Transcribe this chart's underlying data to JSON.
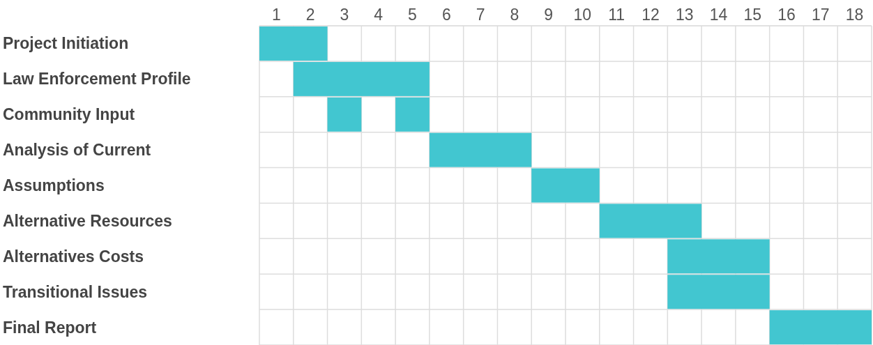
{
  "chart_data": {
    "type": "bar",
    "orientation": "horizontal",
    "grid": true,
    "categories": [
      "Project Initiation",
      "Law Enforcement Profile",
      "Community Input",
      "Analysis of Current",
      "Assumptions",
      "Alternative Resources",
      "Alternatives Costs",
      "Transitional Issues",
      "Final Report"
    ],
    "xlim": [
      0,
      18
    ],
    "xticks": [
      {
        "value": 0.5,
        "label": "1"
      },
      {
        "value": 1.5,
        "label": "2"
      },
      {
        "value": 2.5,
        "label": "3"
      },
      {
        "value": 3.5,
        "label": "4"
      },
      {
        "value": 4.5,
        "label": "5"
      },
      {
        "value": 5.5,
        "label": "6"
      },
      {
        "value": 6.5,
        "label": "7"
      },
      {
        "value": 7.5,
        "label": "8"
      },
      {
        "value": 8.5,
        "label": "9"
      },
      {
        "value": 9.5,
        "label": "10"
      },
      {
        "value": 10.5,
        "label": "11"
      },
      {
        "value": 11.5,
        "label": "12"
      },
      {
        "value": 12.5,
        "label": "13"
      },
      {
        "value": 13.5,
        "label": "14"
      },
      {
        "value": 14.5,
        "label": "15"
      },
      {
        "value": 15.5,
        "label": "16"
      },
      {
        "value": 16.5,
        "label": "17"
      },
      {
        "value": 17.5,
        "label": "18"
      }
    ],
    "series": [
      {
        "color": "#42c6d0",
        "base": [
          0,
          1,
          2,
          5,
          8,
          10,
          12,
          12,
          15
        ],
        "values": [
          2,
          4,
          1,
          3,
          2,
          3,
          3,
          3,
          3
        ]
      },
      {
        "color": "#42c6d0",
        "base": [
          null,
          null,
          4,
          null,
          null,
          null,
          null,
          null,
          null
        ],
        "values": [
          null,
          null,
          1,
          null,
          null,
          null,
          null,
          null,
          null
        ]
      }
    ]
  }
}
